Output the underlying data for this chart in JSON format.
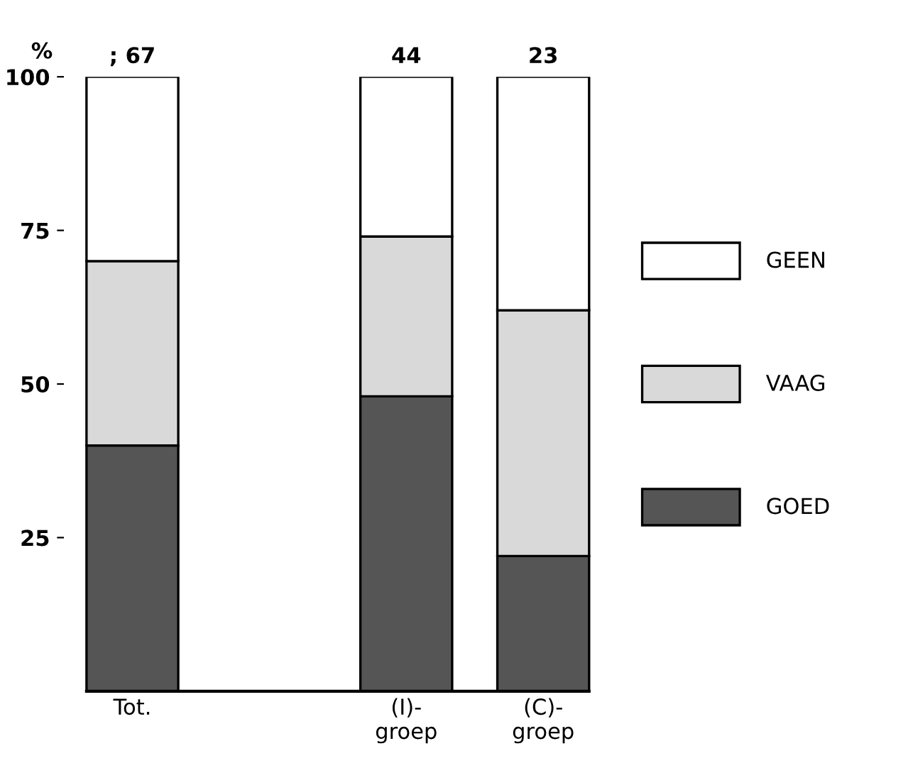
{
  "chart_data": {
    "type": "bar",
    "stacked": true,
    "ylabel": "%",
    "categories": [
      "Tot.",
      null,
      "(I)-\ngroep",
      "(C)-\ngroep"
    ],
    "series": [
      {
        "name": "GOED",
        "color": "#555555",
        "values": [
          40,
          null,
          48,
          22
        ]
      },
      {
        "name": "VAAG",
        "color": "#d9d9d9",
        "values": [
          30,
          null,
          26,
          40
        ]
      },
      {
        "name": "GEEN",
        "color": "#ffffff",
        "values": [
          30,
          null,
          26,
          38
        ]
      }
    ],
    "annotations": [
      {
        "text": "; 67",
        "x": "Tot.",
        "y": 100
      },
      {
        "text": "44",
        "x": "(I)-\ngroep",
        "y": 100
      },
      {
        "text": "23",
        "x": "(C)-\ngroep",
        "y": 100
      }
    ],
    "ylim": [
      0,
      100
    ],
    "yticks": [
      25,
      50,
      75,
      100
    ],
    "legend": "right",
    "grid": false
  }
}
